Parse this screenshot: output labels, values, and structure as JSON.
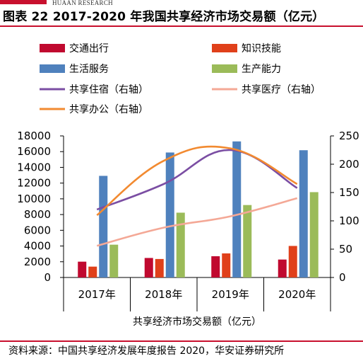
{
  "header": {
    "logo_text": "HUAAN RESEARCH",
    "title": "图表 22 2017-2020 年我国共享经济市场交易额（亿元）"
  },
  "footer": {
    "source": "资料来源：中国共享经济发展年度报告 2020，华安证券研究所"
  },
  "colors": {
    "brand_red": "#c8102e",
    "交通出行": "#c0092f",
    "知识技能": "#e0401a",
    "生活服务": "#4f81bd",
    "生产能力": "#9bbb59",
    "共享住宿（右轴）": "#7b4ea3",
    "共享医疗（右轴）": "#f4a896",
    "共享办公（右轴）": "#f28a30"
  },
  "chart_data": {
    "type": "bar",
    "categories": [
      "2017年",
      "2018年",
      "2019年",
      "2020年"
    ],
    "xlabel": "共享经济市场交易额（亿元）",
    "ylabel": "",
    "ylim": [
      0,
      18000
    ],
    "yticks": [
      "0",
      "2000",
      "4000",
      "6000",
      "8000",
      "10000",
      "12000",
      "14000",
      "16000",
      "18000"
    ],
    "y2lim": [
      0,
      250
    ],
    "y2ticks": [
      "0",
      "50",
      "100",
      "150",
      "200",
      "250"
    ],
    "grid": false,
    "legend_position": "top",
    "bar_series": [
      {
        "name": "交通出行",
        "values": [
          2010,
          2480,
          2700,
          2280
        ]
      },
      {
        "name": "知识技能",
        "values": [
          1380,
          2350,
          3060,
          4010
        ]
      },
      {
        "name": "生活服务",
        "values": [
          12920,
          15890,
          17300,
          16180
        ]
      },
      {
        "name": "生产能力",
        "values": [
          4170,
          8240,
          9210,
          10850
        ]
      }
    ],
    "line_series": [
      {
        "name": "共享住宿（右轴）",
        "axis": "right",
        "values": [
          120,
          165,
          225,
          158
        ]
      },
      {
        "name": "共享医疗（右轴）",
        "axis": "right",
        "values": [
          56,
          88,
          108,
          140
        ]
      },
      {
        "name": "共享办公（右轴）",
        "axis": "right",
        "values": [
          110,
          206,
          228,
          165
        ]
      }
    ]
  }
}
